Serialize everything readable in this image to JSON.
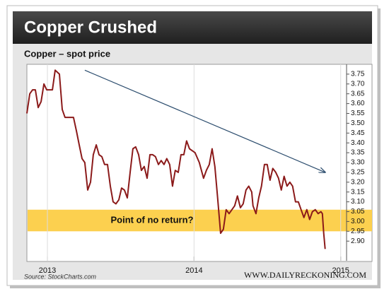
{
  "chart_data": {
    "type": "line",
    "title": "Copper Crushed",
    "subtitle": "Copper – spot price",
    "source": "Source: StockCharts.com",
    "credit": "WWW.DAILYRECKONING.COM",
    "xlim": [
      2012.86,
      2015.04
    ],
    "xticks": [
      2013,
      2014,
      2015
    ],
    "ylim": [
      2.8,
      3.8
    ],
    "yticks": [
      {
        "value": 2.9,
        "label": "2.90"
      },
      2.95,
      {
        "value": 3,
        "label": "3.00"
      },
      3.05,
      {
        "value": 3.1,
        "label": "3.10"
      },
      3.15,
      {
        "value": 3.2,
        "label": "3.20"
      },
      3.25,
      {
        "value": 3.3,
        "label": "3.30"
      },
      3.35,
      {
        "value": 3.4,
        "label": "3.40"
      },
      3.45,
      {
        "value": 3.5,
        "label": "3.50"
      },
      3.55,
      {
        "value": 3.6,
        "label": "3.60"
      },
      3.65,
      {
        "value": 3.7,
        "label": "3.70"
      },
      3.75
    ],
    "band": {
      "text": "Point of no return?",
      "range": [
        2.95,
        3.06
      ],
      "color": "#fcd04f"
    },
    "trend_arrow": {
      "x": [
        2013.255,
        2014.894
      ],
      "y": [
        3.77,
        3.25
      ],
      "color": "#2c4d6e"
    },
    "series": [
      {
        "name": "Copper",
        "color": "#8b1a1a",
        "x": [
          2012.86,
          2012.88,
          2012.899,
          2012.918,
          2012.937,
          2012.957,
          2012.976,
          2012.995,
          2013.014,
          2013.034,
          2013.053,
          2013.082,
          2013.101,
          2013.12,
          2013.14,
          2013.178,
          2013.198,
          2013.217,
          2013.236,
          2013.255,
          2013.275,
          2013.294,
          2013.313,
          2013.333,
          2013.352,
          2013.371,
          2013.39,
          2013.41,
          2013.429,
          2013.448,
          2013.467,
          2013.487,
          2013.506,
          2013.525,
          2013.545,
          2013.564,
          2013.583,
          2013.602,
          2013.622,
          2013.641,
          2013.66,
          2013.68,
          2013.699,
          2013.718,
          2013.737,
          2013.757,
          2013.776,
          2013.795,
          2013.814,
          2013.834,
          2013.853,
          2013.872,
          2013.892,
          2013.911,
          2013.93,
          2013.949,
          2013.969,
          2013.988,
          2014.007,
          2014.036,
          2014.065,
          2014.084,
          2014.104,
          2014.123,
          2014.142,
          2014.161,
          2014.181,
          2014.2,
          2014.219,
          2014.239,
          2014.258,
          2014.277,
          2014.296,
          2014.316,
          2014.335,
          2014.354,
          2014.373,
          2014.393,
          2014.402,
          2014.422,
          2014.441,
          2014.46,
          2014.48,
          2014.499,
          2014.518,
          2014.537,
          2014.557,
          2014.576,
          2014.595,
          2014.614,
          2014.634,
          2014.653,
          2014.672,
          2014.692,
          2014.711,
          2014.73,
          2014.749,
          2014.769,
          2014.788,
          2014.807,
          2014.827,
          2014.846,
          2014.865,
          2014.875,
          2014.884,
          2014.894
        ],
        "values": [
          3.55,
          3.65,
          3.67,
          3.67,
          3.58,
          3.61,
          3.7,
          3.67,
          3.67,
          3.67,
          3.77,
          3.75,
          3.57,
          3.53,
          3.53,
          3.53,
          3.46,
          3.39,
          3.32,
          3.3,
          3.16,
          3.2,
          3.34,
          3.39,
          3.34,
          3.33,
          3.29,
          3.29,
          3.18,
          3.1,
          3.09,
          3.11,
          3.17,
          3.16,
          3.12,
          3.25,
          3.37,
          3.38,
          3.34,
          3.26,
          3.28,
          3.22,
          3.34,
          3.34,
          3.33,
          3.29,
          3.31,
          3.29,
          3.32,
          3.29,
          3.18,
          3.26,
          3.25,
          3.34,
          3.34,
          3.41,
          3.37,
          3.36,
          3.35,
          3.3,
          3.22,
          3.26,
          3.29,
          3.37,
          3.28,
          3.12,
          2.94,
          2.96,
          3.06,
          3.04,
          3.06,
          3.08,
          3.13,
          3.07,
          3.09,
          3.16,
          3.18,
          3.15,
          3.08,
          3.04,
          3.12,
          3.18,
          3.29,
          3.29,
          3.21,
          3.27,
          3.25,
          3.22,
          3.16,
          3.23,
          3.18,
          3.2,
          3.18,
          3.1,
          3.1,
          3.06,
          3.02,
          3.06,
          3.01,
          3.05,
          3.06,
          3.04,
          3.05,
          3.04,
          2.94,
          2.86
        ]
      }
    ]
  }
}
